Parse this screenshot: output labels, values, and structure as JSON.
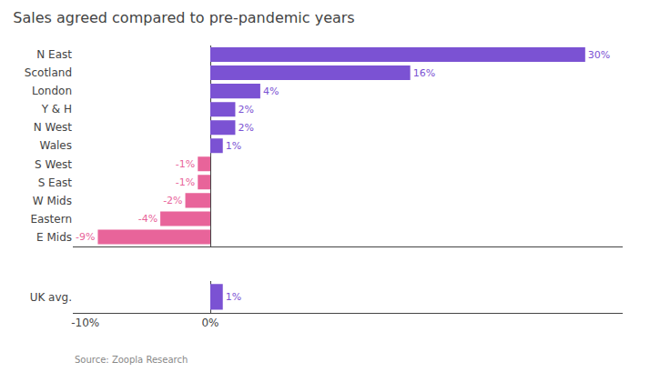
{
  "chart_data": [
    {
      "type": "bar",
      "orientation": "horizontal",
      "title": "Sales agreed compared to pre-pandemic years",
      "categories": [
        "N East",
        "Scotland",
        "London",
        "Y & H",
        "N West",
        "Wales",
        "S West",
        "S East",
        "W Mids",
        "Eastern",
        "E Mids"
      ],
      "values": [
        30,
        16,
        4,
        2,
        2,
        1,
        -1,
        -1,
        -2,
        -4,
        -9
      ],
      "value_labels": [
        "30%",
        "16%",
        "4%",
        "2%",
        "2%",
        "1%",
        "-1%",
        "-1%",
        "-2%",
        "-4%",
        "-9%"
      ],
      "colors": [
        "#7B52D3",
        "#7B52D3",
        "#7B52D3",
        "#7B52D3",
        "#7B52D3",
        "#7B52D3",
        "#E8649A",
        "#E8649A",
        "#E8649A",
        "#E8649A",
        "#E8649A"
      ],
      "data_labels": true,
      "xlim": [
        -11,
        33
      ],
      "grid": false,
      "tick_labels": "y",
      "annotations": [
        "Source: Zoopla Research"
      ]
    },
    {
      "type": "bar",
      "orientation": "horizontal",
      "categories": [
        "UK avg."
      ],
      "values": [
        1
      ],
      "value_labels": [
        "1%"
      ],
      "color": "#7B52D3",
      "data_labels": true,
      "xlim": [
        -11,
        33
      ],
      "xticks": [
        {
          "value": -10,
          "label": "-10%"
        },
        {
          "value": 0,
          "label": "0%"
        }
      ],
      "grid": false
    }
  ]
}
